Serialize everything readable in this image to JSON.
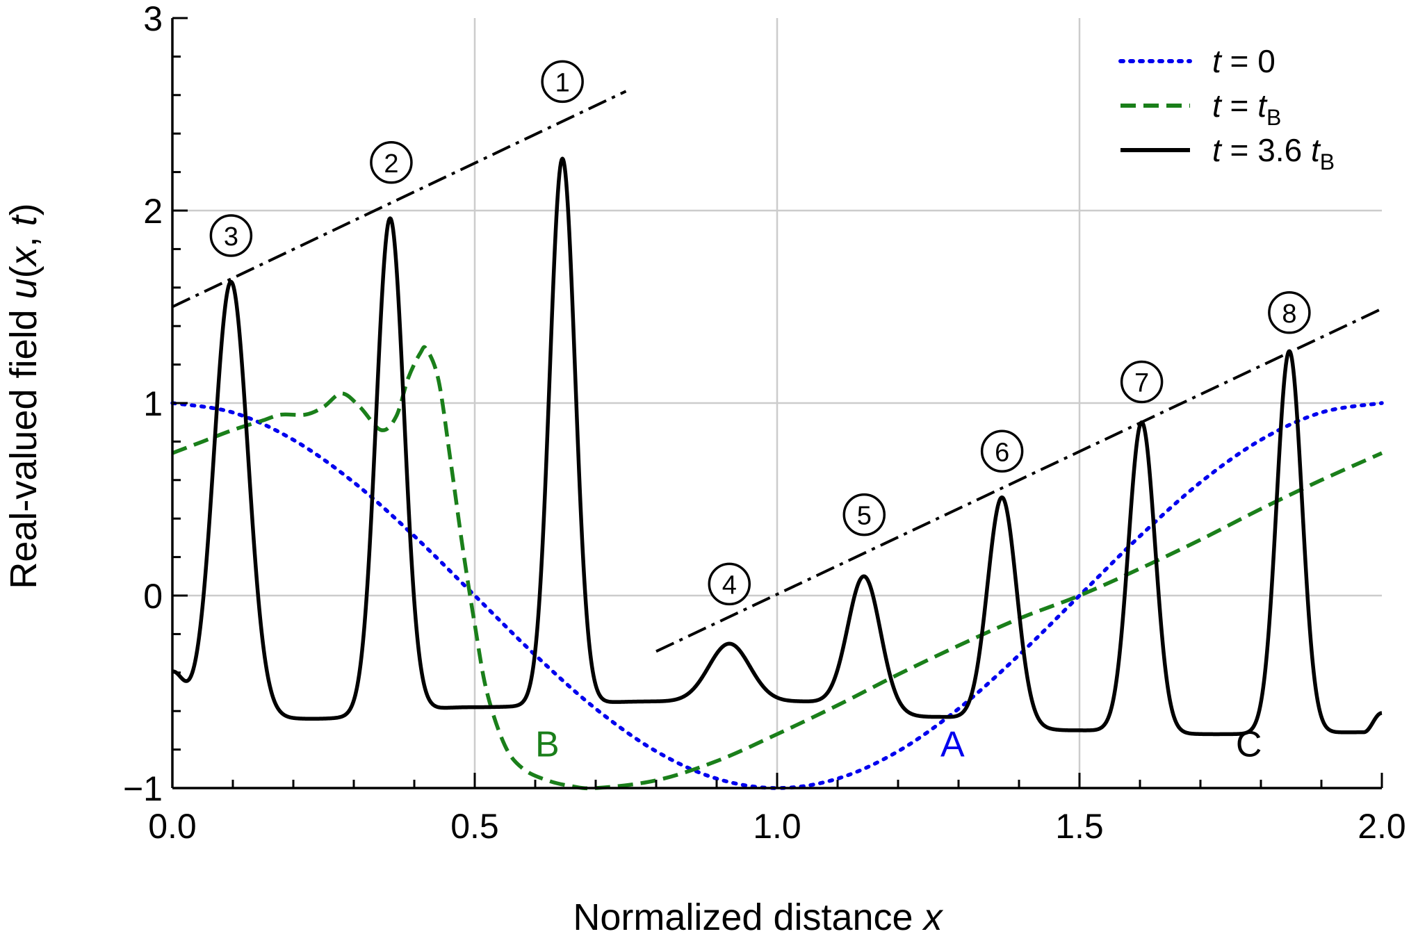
{
  "chart_data": {
    "type": "line",
    "xlabel_main": "Normalized distance ",
    "xlabel_var": "x",
    "ylabel": {
      "pre": "Real-valued field ",
      "u": "u",
      "open": "(",
      "x": "x",
      "comma": ", ",
      "t": "t",
      "close": ")"
    },
    "xlim": [
      0.0,
      2.0
    ],
    "ylim": [
      -1,
      3
    ],
    "grid": true,
    "legend_position": "top-right",
    "x_ticks": [
      {
        "value": 0.0,
        "label": "0.0"
      },
      {
        "value": 0.5,
        "label": "0.5"
      },
      {
        "value": 1.0,
        "label": "1.0"
      },
      {
        "value": 1.5,
        "label": "1.5"
      },
      {
        "value": 2.0,
        "label": "2.0"
      }
    ],
    "y_ticks": [
      {
        "value": -1,
        "label": "−1"
      },
      {
        "value": 0,
        "label": "0"
      },
      {
        "value": 1,
        "label": "1"
      },
      {
        "value": 2,
        "label": "2"
      },
      {
        "value": 3,
        "label": "3"
      }
    ],
    "legend": [
      {
        "t": "t",
        "eq": " = 0",
        "sub": "",
        "color": "#0000ee",
        "dash": "dotted"
      },
      {
        "t": "t",
        "eq": " = ",
        "tb": "t",
        "sub": "B",
        "color": "#1a7f1a",
        "dash": "dashed"
      },
      {
        "t": "t",
        "eq": " = 3.6 ",
        "tb": "t",
        "sub": "B",
        "color": "#000000",
        "dash": "solid"
      }
    ],
    "series": [
      {
        "key": "t0",
        "color": "#0000ee",
        "dash": "dotted",
        "x": [
          0.0,
          0.1,
          0.2,
          0.3,
          0.4,
          0.5,
          0.6,
          0.7,
          0.8,
          0.9,
          1.0,
          1.1,
          1.2,
          1.3,
          1.4,
          1.5,
          1.6,
          1.7,
          1.8,
          1.9,
          2.0
        ],
        "y": [
          1.0,
          0.951,
          0.809,
          0.588,
          0.309,
          0.0,
          -0.309,
          -0.588,
          -0.809,
          -0.951,
          -1.0,
          -0.951,
          -0.809,
          -0.588,
          -0.309,
          0.0,
          0.309,
          0.588,
          0.809,
          0.951,
          1.0
        ]
      },
      {
        "key": "tB",
        "color": "#1a7f1a",
        "dash": "dashed",
        "x": [
          0.0,
          0.05,
          0.1,
          0.15,
          0.18,
          0.22,
          0.25,
          0.28,
          0.31,
          0.345,
          0.37,
          0.39,
          0.41,
          0.42,
          0.44,
          0.46,
          0.48,
          0.5,
          0.52,
          0.55,
          0.58,
          0.62,
          0.66,
          0.7,
          0.8,
          0.9,
          1.0,
          1.1,
          1.2,
          1.3,
          1.4,
          1.5,
          1.6,
          1.7,
          1.8,
          1.9,
          2.0
        ],
        "y": [
          0.74,
          0.8,
          0.86,
          0.91,
          0.94,
          0.94,
          0.98,
          1.05,
          0.98,
          0.86,
          0.93,
          1.13,
          1.26,
          1.28,
          1.12,
          0.7,
          0.25,
          -0.15,
          -0.5,
          -0.78,
          -0.9,
          -0.96,
          -0.99,
          -1.0,
          -0.96,
          -0.86,
          -0.72,
          -0.57,
          -0.41,
          -0.26,
          -0.12,
          0.0,
          0.14,
          0.29,
          0.45,
          0.6,
          0.74
        ]
      },
      {
        "key": "t36B",
        "color": "#000000",
        "dash": "solid",
        "peaks": [
          {
            "x": 0.0,
            "y": -0.4,
            "w": 0.018
          },
          {
            "x": 0.097,
            "y": 1.63,
            "w": 0.028
          },
          {
            "x": 0.36,
            "y": 1.96,
            "w": 0.023
          },
          {
            "x": 0.645,
            "y": 2.27,
            "w": 0.021
          },
          {
            "x": 0.921,
            "y": -0.25,
            "w": 0.034
          },
          {
            "x": 1.144,
            "y": 0.1,
            "w": 0.027
          },
          {
            "x": 1.372,
            "y": 0.51,
            "w": 0.024
          },
          {
            "x": 1.603,
            "y": 0.9,
            "w": 0.022
          },
          {
            "x": 1.847,
            "y": 1.27,
            "w": 0.021
          }
        ],
        "troughs": [
          {
            "x": 0.0,
            "y": -0.6
          },
          {
            "x": 0.23,
            "y": -0.64
          },
          {
            "x": 0.495,
            "y": -0.58
          },
          {
            "x": 0.8,
            "y": -0.55
          },
          {
            "x": 1.03,
            "y": -0.55
          },
          {
            "x": 1.26,
            "y": -0.63
          },
          {
            "x": 1.49,
            "y": -0.7
          },
          {
            "x": 1.725,
            "y": -0.72
          },
          {
            "x": 1.97,
            "y": -0.71
          },
          {
            "x": 2.0,
            "y": -0.61
          }
        ]
      }
    ],
    "envelopes": [
      {
        "key": "upper",
        "x": [
          0.0,
          0.75
        ],
        "y": [
          1.5,
          2.62
        ]
      },
      {
        "key": "lower",
        "x": [
          0.8,
          2.0
        ],
        "y": [
          -0.29,
          1.49
        ]
      }
    ],
    "peak_markers": [
      {
        "label": "1",
        "x": 0.645,
        "y": 2.67
      },
      {
        "label": "2",
        "x": 0.362,
        "y": 2.25
      },
      {
        "label": "3",
        "x": 0.097,
        "y": 1.87
      },
      {
        "label": "4",
        "x": 0.921,
        "y": 0.06
      },
      {
        "label": "5",
        "x": 1.144,
        "y": 0.42
      },
      {
        "label": "6",
        "x": 1.372,
        "y": 0.75
      },
      {
        "label": "7",
        "x": 1.603,
        "y": 1.11
      },
      {
        "label": "8",
        "x": 1.847,
        "y": 1.47
      }
    ],
    "annotations": [
      {
        "text": "A",
        "x": 1.29,
        "y": -0.77,
        "color": "#0000ee"
      },
      {
        "text": "B",
        "x": 0.62,
        "y": -0.77,
        "color": "#1a7f1a"
      },
      {
        "text": "C",
        "x": 1.78,
        "y": -0.77,
        "color": "#000000"
      }
    ]
  }
}
